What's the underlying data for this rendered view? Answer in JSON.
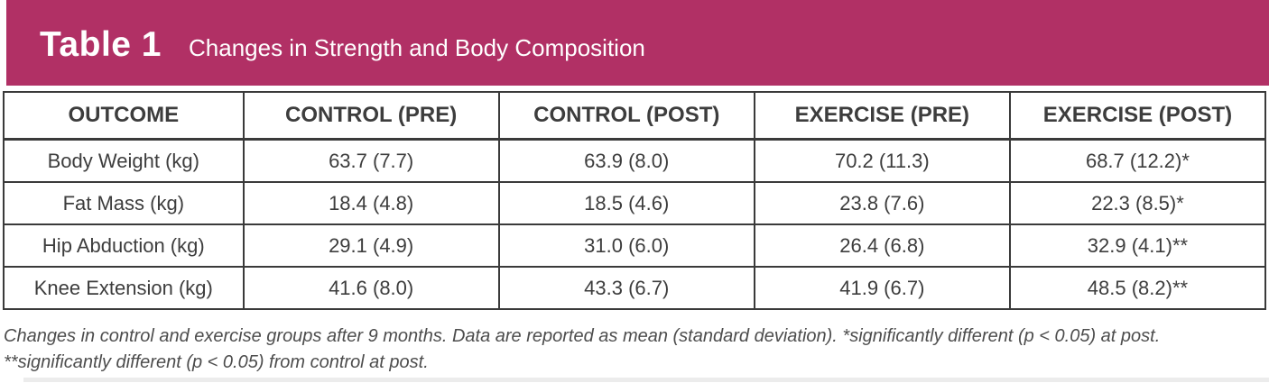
{
  "header": {
    "label": "Table 1",
    "title": "Changes in Strength and Body Composition",
    "accent_color": "#b13065",
    "text_color": "#ffffff"
  },
  "table": {
    "columns": [
      "OUTCOME",
      "CONTROL (PRE)",
      "CONTROL (POST)",
      "EXERCISE (PRE)",
      "EXERCISE (POST)"
    ],
    "rows": [
      [
        "Body Weight (kg)",
        "63.7 (7.7)",
        "63.9 (8.0)",
        "70.2 (11.3)",
        "68.7 (12.2)*"
      ],
      [
        "Fat Mass (kg)",
        "18.4 (4.8)",
        "18.5 (4.6)",
        "23.8 (7.6)",
        "22.3 (8.5)*"
      ],
      [
        "Hip Abduction (kg)",
        "29.1 (4.9)",
        "31.0 (6.0)",
        "26.4 (6.8)",
        "32.9 (4.1)**"
      ],
      [
        "Knee Extension (kg)",
        "41.6 (8.0)",
        "43.3 (6.7)",
        "41.9 (6.7)",
        "48.5 (8.2)**"
      ]
    ],
    "border_color": "#3a3a3a",
    "text_color": "#3d3d3d"
  },
  "footnote": {
    "line1": "Changes in control and exercise groups after 9 months. Data are reported as mean (standard deviation). *significantly different (p < 0.05) at post.",
    "line2": "**significantly different (p < 0.05) from control at post."
  }
}
